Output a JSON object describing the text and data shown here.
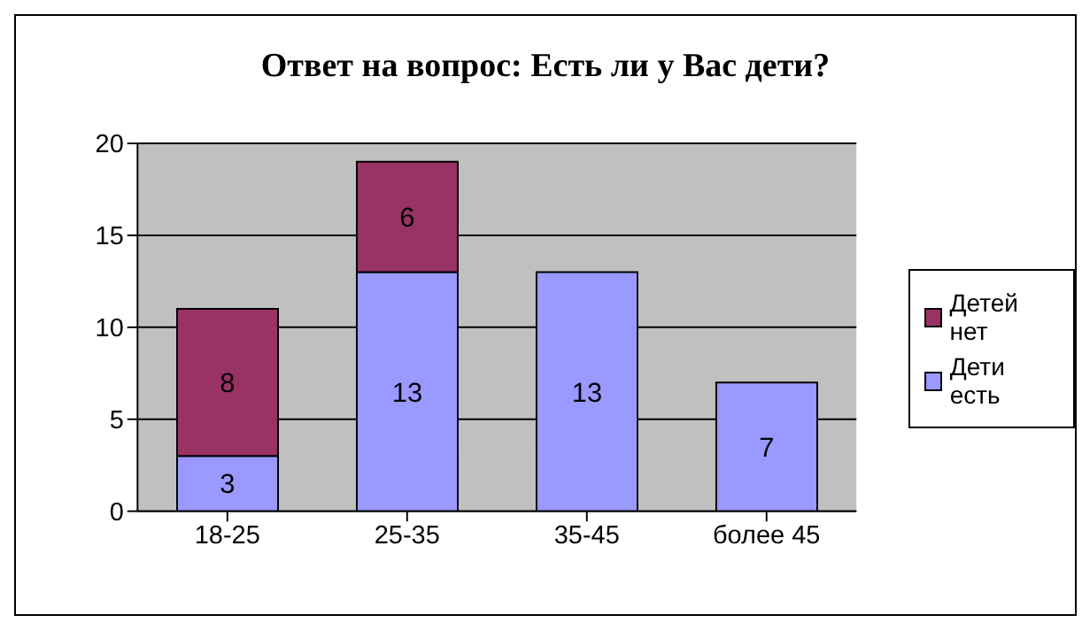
{
  "chart_data": {
    "type": "bar",
    "title": "Ответ на вопрос: Есть ли у Вас дети?",
    "categories": [
      "18-25",
      "25-35",
      "35-45",
      "более 45"
    ],
    "stacked": true,
    "series": [
      {
        "name": "Дети есть",
        "color": "#9999ff",
        "values": [
          3,
          13,
          13,
          7
        ]
      },
      {
        "name": "Детей нет",
        "color": "#993366",
        "values": [
          8,
          6,
          null,
          null
        ]
      }
    ],
    "ylim": [
      0,
      20
    ],
    "yticks": [
      0,
      5,
      10,
      15,
      20
    ],
    "grid": "y",
    "legend": "right",
    "data_labels": true
  }
}
